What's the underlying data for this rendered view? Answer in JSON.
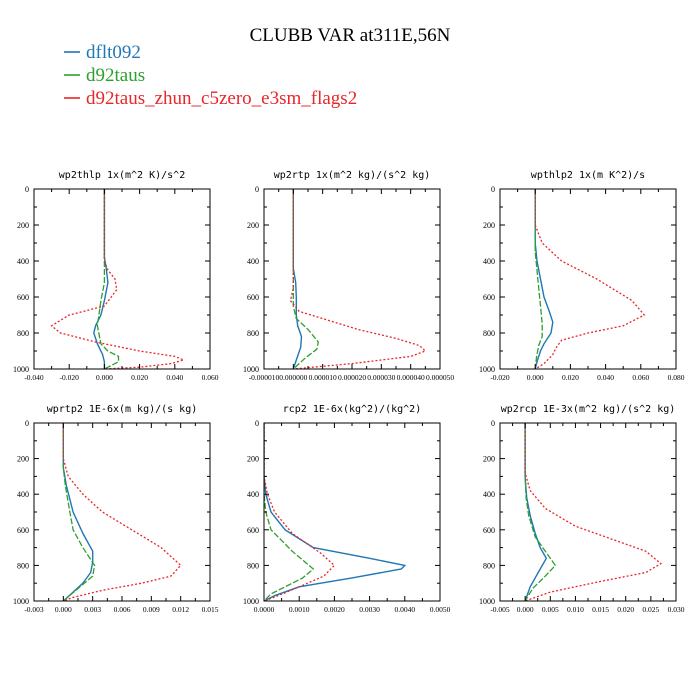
{
  "figure": {
    "title": "CLUBB VAR at311E,56N"
  },
  "legend": [
    {
      "label": "dflt092",
      "color": "#1f77b4"
    },
    {
      "label": "d92taus",
      "color": "#2ca02c"
    },
    {
      "label": "d92taus_zhun_c5zero_e3sm_flags2",
      "color": "#e8262a"
    }
  ],
  "chart_data": [
    {
      "type": "line",
      "title": "wp2thlp 1x(m^2 K)/s^2",
      "xlim": [
        -0.04,
        0.06
      ],
      "xticks": [
        -0.04,
        -0.02,
        0.0,
        0.02,
        0.04,
        0.06
      ],
      "xtick_labels": [
        "-0.040",
        "-0.020",
        "0.000",
        "0.020",
        "0.040",
        "0.060"
      ],
      "ylim": [
        1000,
        0
      ],
      "yticks": [
        0,
        200,
        400,
        600,
        800,
        1000
      ],
      "ytick_labels": [
        "0",
        "200",
        "400",
        "600",
        "800",
        "1000"
      ],
      "series": [
        {
          "name": "dflt092",
          "x": [
            0,
            0,
            0.001,
            0.002,
            0,
            -0.002,
            -0.005,
            -0.006,
            -0.004,
            -0.001,
            0,
            0,
            0
          ],
          "y": [
            0,
            380,
            440,
            520,
            620,
            700,
            760,
            800,
            860,
            920,
            960,
            990,
            1000
          ]
        },
        {
          "name": "d92taus",
          "x": [
            0,
            0,
            0,
            -0.002,
            -0.004,
            -0.002,
            0.002,
            0.008,
            0.008,
            0.002,
            0
          ],
          "y": [
            0,
            420,
            520,
            620,
            760,
            860,
            900,
            930,
            960,
            990,
            1000
          ]
        },
        {
          "name": "d92taus_zhun_c5zero_e3sm_flags2",
          "x": [
            0,
            0,
            0.002,
            0.006,
            0.007,
            0,
            -0.02,
            -0.03,
            -0.025,
            -0.005,
            0.02,
            0.04,
            0.045,
            0.038,
            0.02,
            0
          ],
          "y": [
            0,
            400,
            450,
            500,
            560,
            650,
            700,
            760,
            800,
            850,
            900,
            930,
            950,
            970,
            990,
            1000
          ]
        }
      ]
    },
    {
      "type": "line",
      "title": "wp2rtp 1x(m^2 kg)/(s^2 kg)",
      "xlim": [
        -1e-05,
        5e-05
      ],
      "xticks": [
        -1e-05,
        0.0,
        1e-05,
        2e-05,
        3e-05,
        4e-05,
        5e-05
      ],
      "xtick_labels": [
        "-0.000010",
        "0.000000",
        "0.000010",
        "0.000020",
        "0.000030",
        "0.000040",
        "0.000050"
      ],
      "ylim": [
        1000,
        0
      ],
      "yticks": [
        0,
        200,
        400,
        600,
        800,
        1000
      ],
      "ytick_labels": [
        "0",
        "200",
        "400",
        "600",
        "800",
        "1000"
      ],
      "series": [
        {
          "name": "dflt092",
          "x": [
            0,
            0,
            8e-07,
            1e-06,
            1e-06,
            1.5e-06,
            2.8e-06,
            2.5e-06,
            1e-06,
            0
          ],
          "y": [
            0,
            440,
            520,
            600,
            700,
            760,
            820,
            880,
            950,
            1000
          ]
        },
        {
          "name": "d92taus",
          "x": [
            0,
            0,
            0,
            0,
            1e-06,
            5e-06,
            8.5e-06,
            8e-06,
            4e-06,
            0
          ],
          "y": [
            0,
            450,
            550,
            650,
            720,
            780,
            850,
            890,
            940,
            1000
          ]
        },
        {
          "name": "d92taus_zhun_c5zero_e3sm_flags2",
          "x": [
            0,
            0,
            0,
            -1e-06,
            2e-06,
            1e-05,
            2.2e-05,
            3.5e-05,
            4.3e-05,
            4.5e-05,
            4e-05,
            2e-05,
            0
          ],
          "y": [
            0,
            440,
            550,
            620,
            680,
            720,
            780,
            830,
            870,
            900,
            930,
            970,
            1000
          ]
        }
      ]
    },
    {
      "type": "line",
      "title": "wpthlp2 1x(m K^2)/s",
      "xlim": [
        -0.02,
        0.08
      ],
      "xticks": [
        -0.02,
        0.0,
        0.02,
        0.04,
        0.06,
        0.08
      ],
      "xtick_labels": [
        "-0.020",
        "0.000",
        "0.020",
        "0.040",
        "0.060",
        "0.080"
      ],
      "ylim": [
        1000,
        0
      ],
      "yticks": [
        0,
        200,
        400,
        600,
        800,
        1000
      ],
      "ytick_labels": [
        "0",
        "200",
        "400",
        "600",
        "800",
        "1000"
      ],
      "series": [
        {
          "name": "dflt092",
          "x": [
            0,
            0,
            0.001,
            0.003,
            0.005,
            0.008,
            0.01,
            0.009,
            0.005,
            0.003,
            0.001,
            0
          ],
          "y": [
            0,
            300,
            400,
            500,
            600,
            680,
            740,
            800,
            860,
            900,
            960,
            1000
          ]
        },
        {
          "name": "d92taus",
          "x": [
            0,
            0,
            0.001,
            0.002,
            0.003,
            0.004,
            0.004,
            0.002,
            0.0008,
            0
          ],
          "y": [
            0,
            350,
            450,
            550,
            650,
            750,
            820,
            870,
            930,
            1000
          ]
        },
        {
          "name": "d92taus_zhun_c5zero_e3sm_flags2",
          "x": [
            0,
            0,
            0.004,
            0.015,
            0.035,
            0.055,
            0.062,
            0.05,
            0.03,
            0.015,
            0.012,
            0.01,
            0.005,
            0
          ],
          "y": [
            0,
            200,
            300,
            400,
            500,
            620,
            700,
            760,
            800,
            840,
            880,
            920,
            970,
            1000
          ]
        }
      ]
    },
    {
      "type": "line",
      "title": "wprtp2 1E-6x(m kg)/(s kg)",
      "xlim": [
        -0.003,
        0.015
      ],
      "xticks": [
        -0.003,
        0.0,
        0.003,
        0.006,
        0.009,
        0.012,
        0.015
      ],
      "xtick_labels": [
        "-0.003",
        "0.000",
        "0.003",
        "0.006",
        "0.009",
        "0.012",
        "0.015"
      ],
      "ylim": [
        1000,
        0
      ],
      "yticks": [
        0,
        200,
        400,
        600,
        800,
        1000
      ],
      "ytick_labels": [
        "0",
        "200",
        "400",
        "600",
        "800",
        "1000"
      ],
      "series": [
        {
          "name": "dflt092",
          "x": [
            0,
            0,
            0.0003,
            0.001,
            0.002,
            0.003,
            0.003,
            0.0028,
            0.002,
            0.0008,
            0
          ],
          "y": [
            0,
            250,
            350,
            500,
            620,
            720,
            780,
            840,
            900,
            960,
            1000
          ]
        },
        {
          "name": "d92taus",
          "x": [
            0,
            0,
            0.0002,
            0.0006,
            0.001,
            0.002,
            0.0032,
            0.003,
            0.0015,
            0
          ],
          "y": [
            0,
            250,
            350,
            480,
            600,
            700,
            800,
            860,
            930,
            1000
          ]
        },
        {
          "name": "d92taus_zhun_c5zero_e3sm_flags2",
          "x": [
            0,
            0,
            0.0005,
            0.002,
            0.004,
            0.007,
            0.01,
            0.012,
            0.011,
            0.008,
            0.004,
            0.001,
            0
          ],
          "y": [
            0,
            200,
            300,
            400,
            500,
            600,
            700,
            800,
            860,
            900,
            940,
            980,
            1000
          ]
        }
      ]
    },
    {
      "type": "line",
      "title": "rcp2 1E-6x(kg^2)/(kg^2)",
      "xlim": [
        0.0,
        0.005
      ],
      "xticks": [
        0.0,
        0.001,
        0.002,
        0.003,
        0.004,
        0.005
      ],
      "xtick_labels": [
        "0.0000",
        "0.0010",
        "0.0020",
        "0.0030",
        "0.0040",
        "0.0050"
      ],
      "ylim": [
        1000,
        0
      ],
      "yticks": [
        0,
        200,
        400,
        600,
        800,
        1000
      ],
      "ytick_labels": [
        "0",
        "200",
        "400",
        "600",
        "800",
        "1000"
      ],
      "series": [
        {
          "name": "dflt092",
          "x": [
            0,
            0,
            5e-05,
            0.0002,
            0.0006,
            0.0014,
            0.003,
            0.004,
            0.0039,
            0.0025,
            0.001,
            0.0003,
            0
          ],
          "y": [
            0,
            300,
            400,
            500,
            600,
            700,
            760,
            800,
            820,
            870,
            920,
            970,
            1000
          ]
        },
        {
          "name": "d92taus",
          "x": [
            0,
            0,
            5e-05,
            0.0002,
            0.0008,
            0.0014,
            0.0011,
            0.0006,
            0.0002,
            0
          ],
          "y": [
            0,
            400,
            500,
            600,
            720,
            820,
            870,
            920,
            960,
            1000
          ]
        },
        {
          "name": "d92taus_zhun_c5zero_e3sm_flags2",
          "x": [
            0,
            0,
            0.0001,
            0.0003,
            0.0008,
            0.0016,
            0.002,
            0.0017,
            0.001,
            0.0004,
            0
          ],
          "y": [
            0,
            300,
            400,
            500,
            620,
            730,
            800,
            860,
            920,
            970,
            1000
          ]
        }
      ]
    },
    {
      "type": "line",
      "title": "wp2rcp 1E-3x(m^2 kg)/(s^2 kg)",
      "xlim": [
        -0.005,
        0.03
      ],
      "xticks": [
        -0.005,
        0.0,
        0.005,
        0.01,
        0.015,
        0.02,
        0.025,
        0.03
      ],
      "xtick_labels": [
        "-0.005",
        "0.000",
        "0.005",
        "0.010",
        "0.015",
        "0.020",
        "0.025",
        "0.030"
      ],
      "ylim": [
        1000,
        0
      ],
      "yticks": [
        0,
        200,
        400,
        600,
        800,
        1000
      ],
      "ytick_labels": [
        "0",
        "200",
        "400",
        "600",
        "800",
        "1000"
      ],
      "series": [
        {
          "name": "dflt092",
          "x": [
            0,
            0,
            0.0003,
            0.001,
            0.002,
            0.003,
            0.0042,
            0.003,
            0.001,
            0
          ],
          "y": [
            0,
            300,
            420,
            520,
            620,
            700,
            760,
            820,
            920,
            1000
          ]
        },
        {
          "name": "d92taus",
          "x": [
            0,
            0,
            0.0002,
            0.0007,
            0.002,
            0.0045,
            0.006,
            0.004,
            0.0015,
            0
          ],
          "y": [
            0,
            300,
            420,
            520,
            640,
            740,
            800,
            860,
            930,
            1000
          ]
        },
        {
          "name": "d92taus_zhun_c5zero_e3sm_flags2",
          "x": [
            0,
            0,
            0.001,
            0.004,
            0.01,
            0.018,
            0.024,
            0.027,
            0.024,
            0.015,
            0.005,
            0
          ],
          "y": [
            0,
            280,
            380,
            480,
            580,
            660,
            720,
            790,
            840,
            890,
            950,
            1000
          ]
        }
      ]
    }
  ]
}
